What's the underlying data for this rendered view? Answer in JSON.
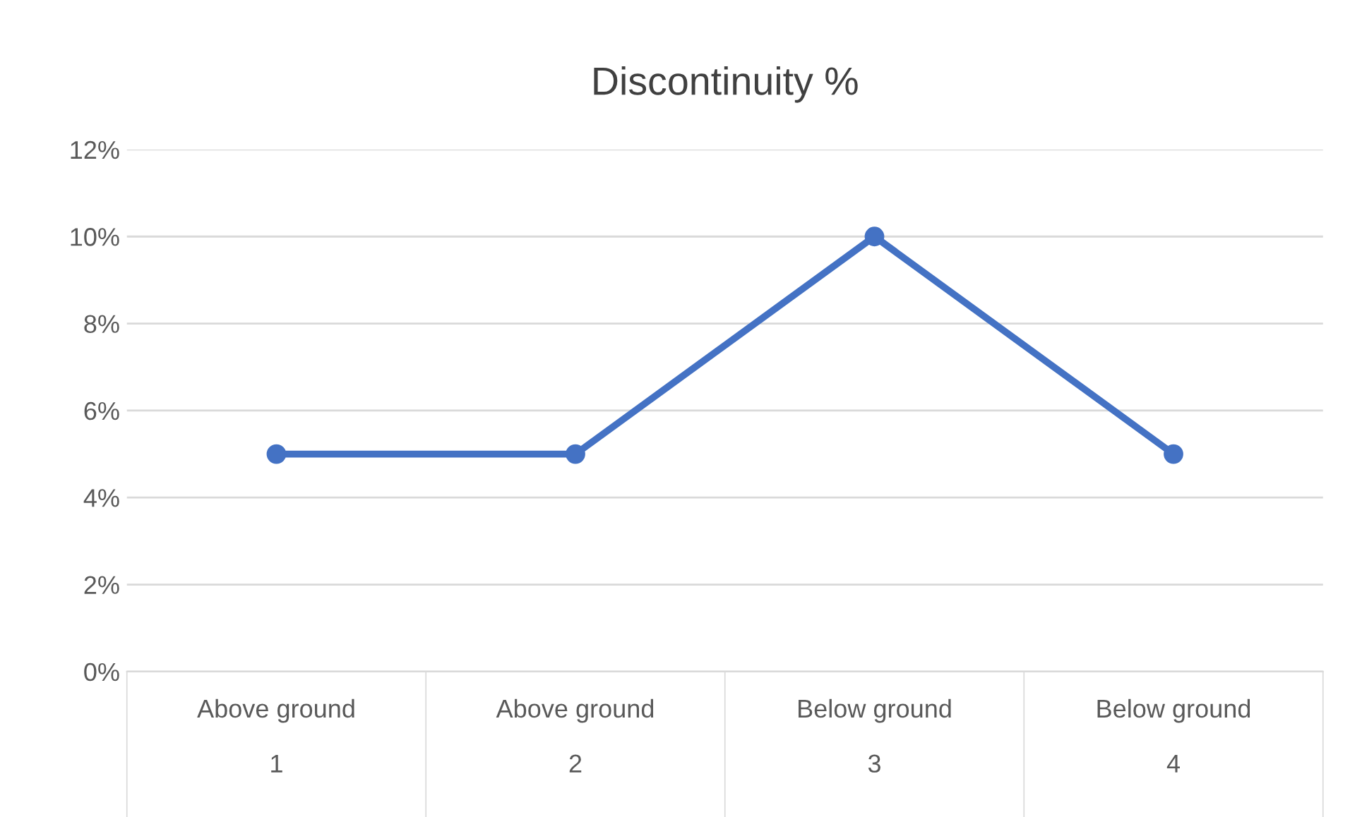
{
  "chart_data": {
    "type": "line",
    "title": "Discontinuity %",
    "categories": [
      "Above ground\n\n1",
      "Above ground\n\n2",
      "Below ground\n\n3",
      "Below ground\n\n4"
    ],
    "series": [
      {
        "color": "#4472c4",
        "values": [
          5,
          5,
          10,
          5
        ]
      }
    ],
    "ylim": [
      0,
      12
    ],
    "yticks": [
      {
        "value": 0,
        "label": "0%"
      },
      {
        "value": 2,
        "label": "2%"
      },
      {
        "value": 4,
        "label": "4%"
      },
      {
        "value": 6,
        "label": "6%"
      },
      {
        "value": 8,
        "label": "8%"
      },
      {
        "value": 10,
        "label": "10%"
      },
      {
        "value": 12,
        "label": "12%"
      }
    ],
    "grid": "y",
    "legend": false,
    "marker": "circle",
    "line_style": "solid"
  }
}
